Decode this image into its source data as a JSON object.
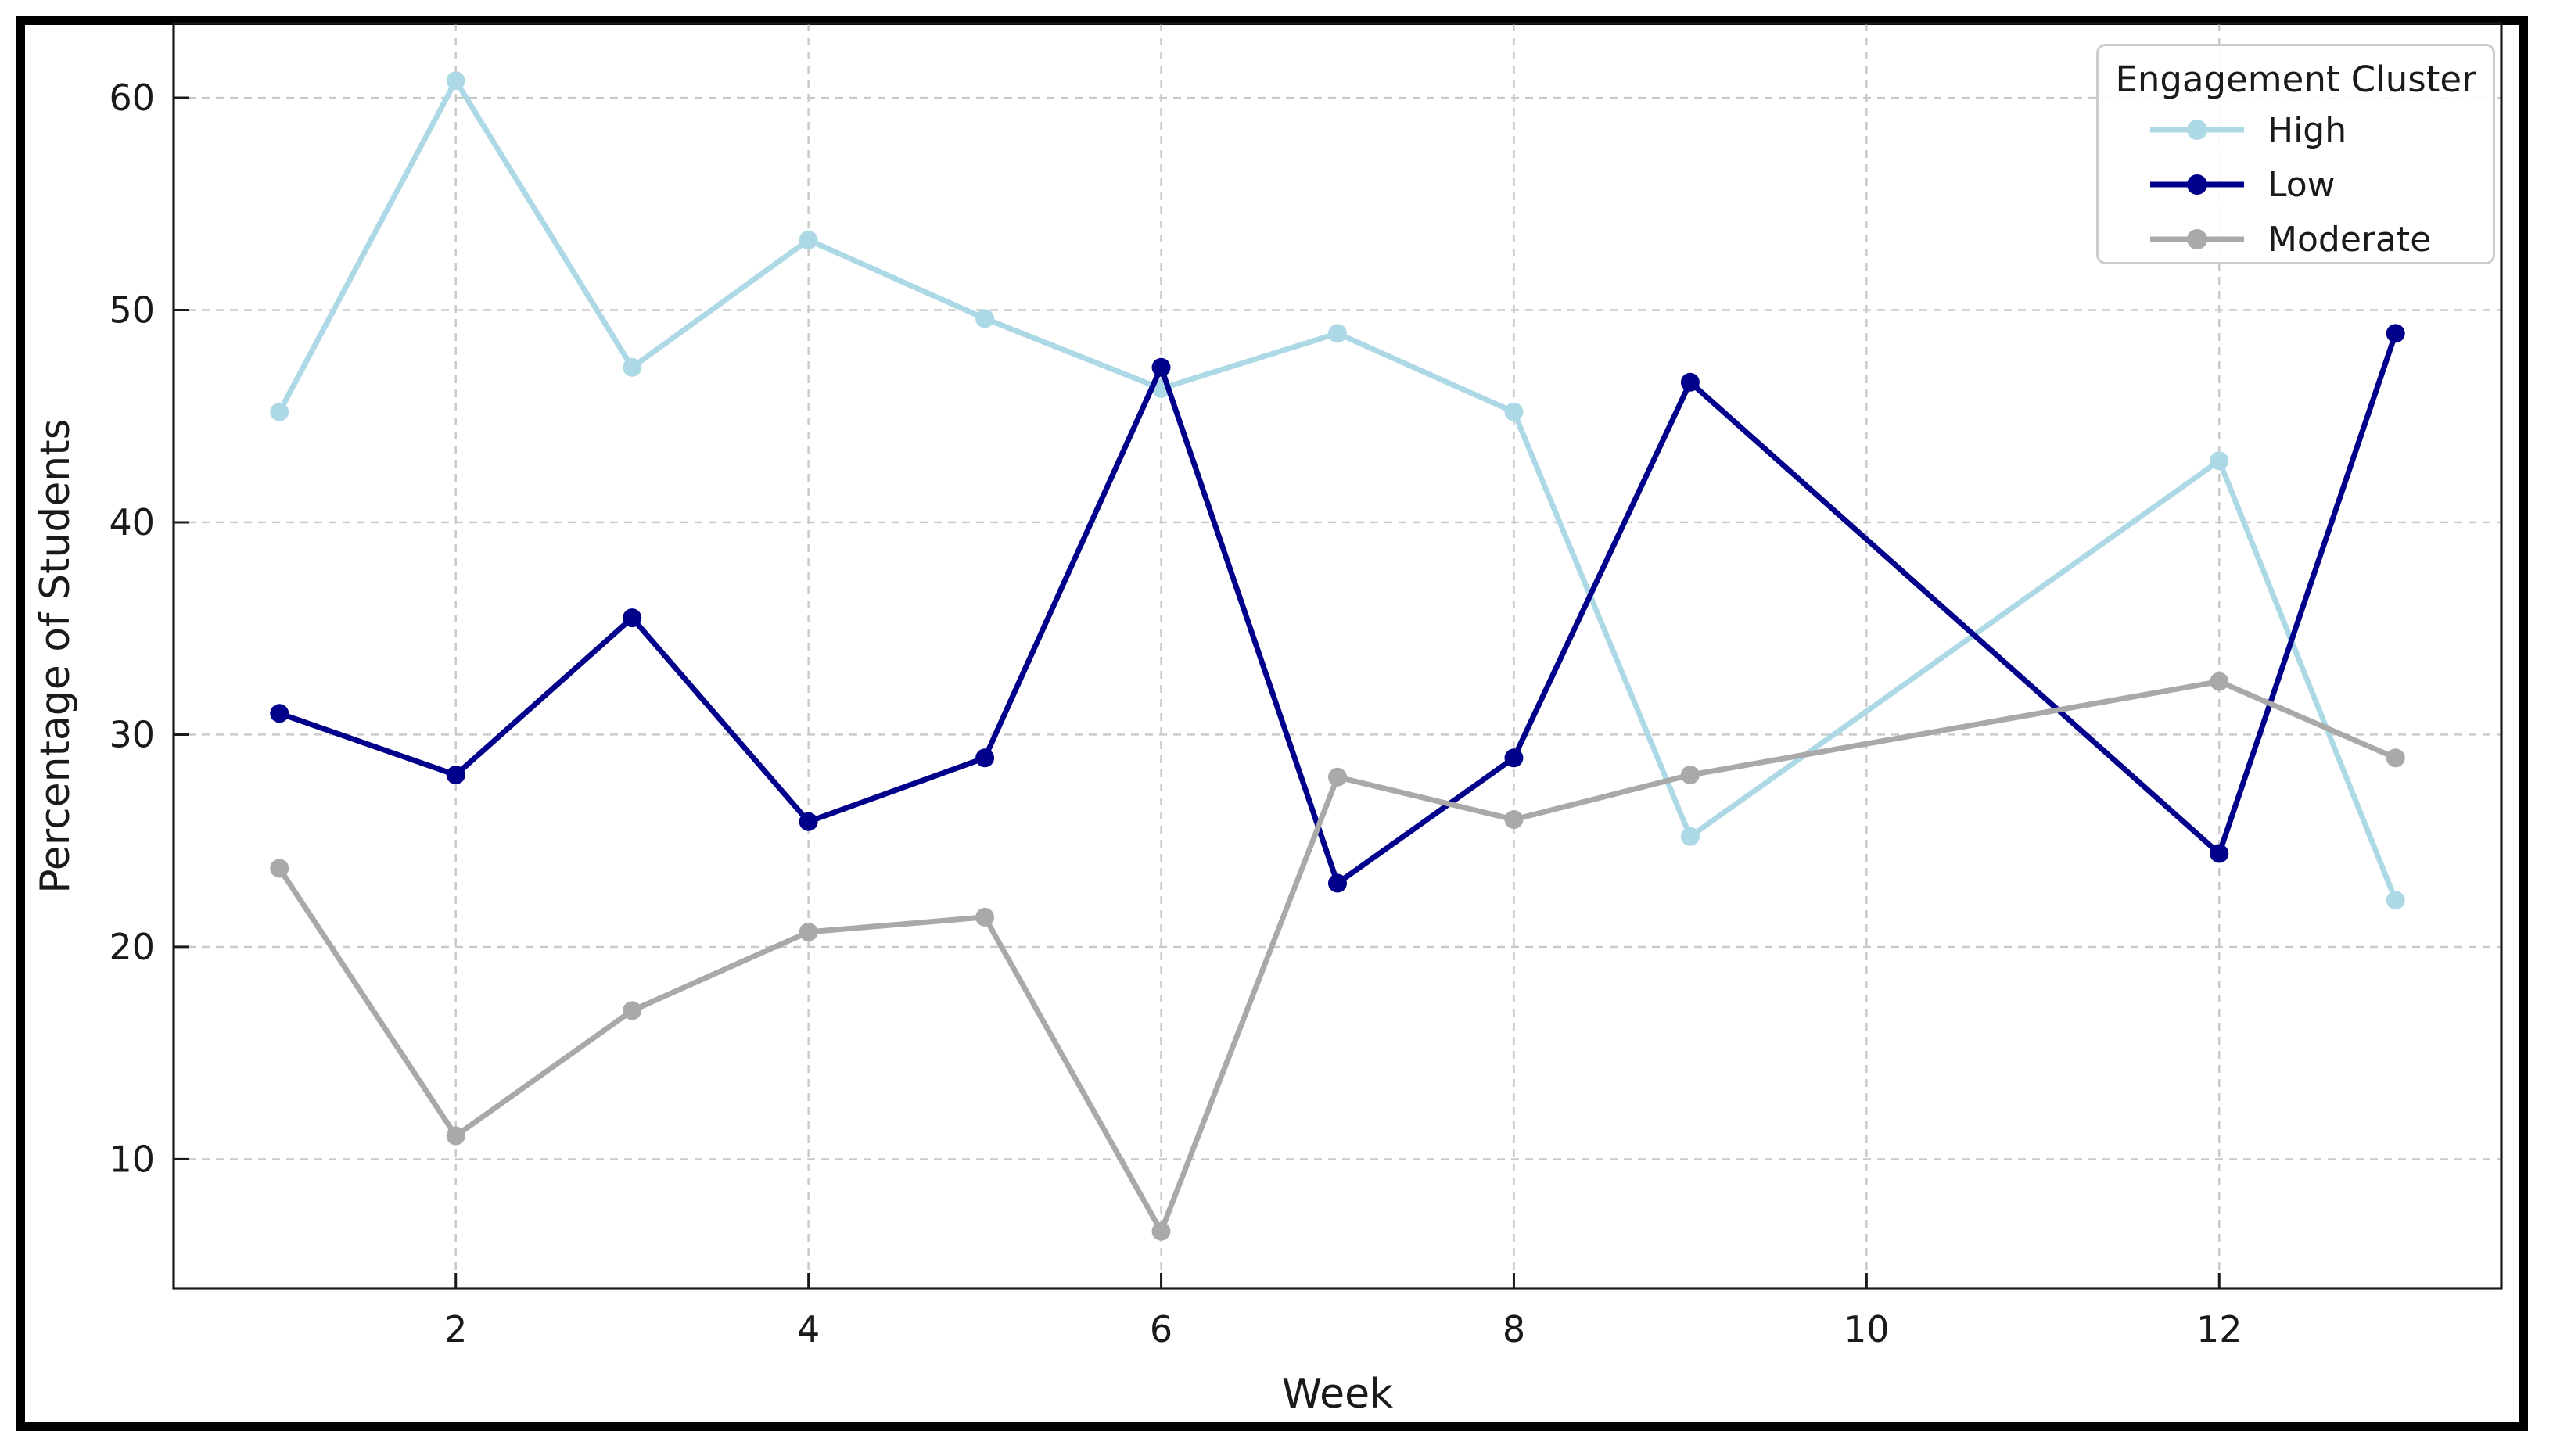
{
  "chart_data": {
    "type": "line",
    "title": "",
    "xlabel": "Week",
    "ylabel": "Percentage of Students",
    "x": [
      1,
      2,
      3,
      4,
      5,
      6,
      7,
      8,
      9,
      12,
      13
    ],
    "series": [
      {
        "name": "High",
        "color": "#ADD8E6",
        "values": [
          45.2,
          60.8,
          47.3,
          53.3,
          49.6,
          46.3,
          48.9,
          45.2,
          25.2,
          42.9,
          22.2
        ]
      },
      {
        "name": "Low",
        "color": "#00008B",
        "values": [
          31.0,
          28.1,
          35.5,
          25.9,
          28.9,
          47.3,
          23.0,
          28.9,
          46.6,
          24.4,
          48.9
        ]
      },
      {
        "name": "Moderate",
        "color": "#A9A9A9",
        "values": [
          23.7,
          11.1,
          17.0,
          20.7,
          21.4,
          6.6,
          28.0,
          26.0,
          28.1,
          32.5,
          28.9
        ]
      }
    ],
    "legend": {
      "title": "Engagement Cluster",
      "position": "upper right",
      "entries": [
        "High",
        "Low",
        "Moderate"
      ]
    },
    "xticks": [
      2,
      4,
      6,
      8,
      10,
      12
    ],
    "yticks": [
      10,
      20,
      30,
      40,
      50,
      60
    ],
    "xlim": [
      0.4,
      13.6
    ],
    "ylim": [
      3.9,
      63.5
    ],
    "grid": true,
    "grid_style": "dashed",
    "colors": {
      "grid": "#c9c9c9",
      "spine": "#1a1a1a",
      "text": "#1a1a1a",
      "figure_border": "#000000",
      "legend_border": "#cccccc"
    }
  }
}
